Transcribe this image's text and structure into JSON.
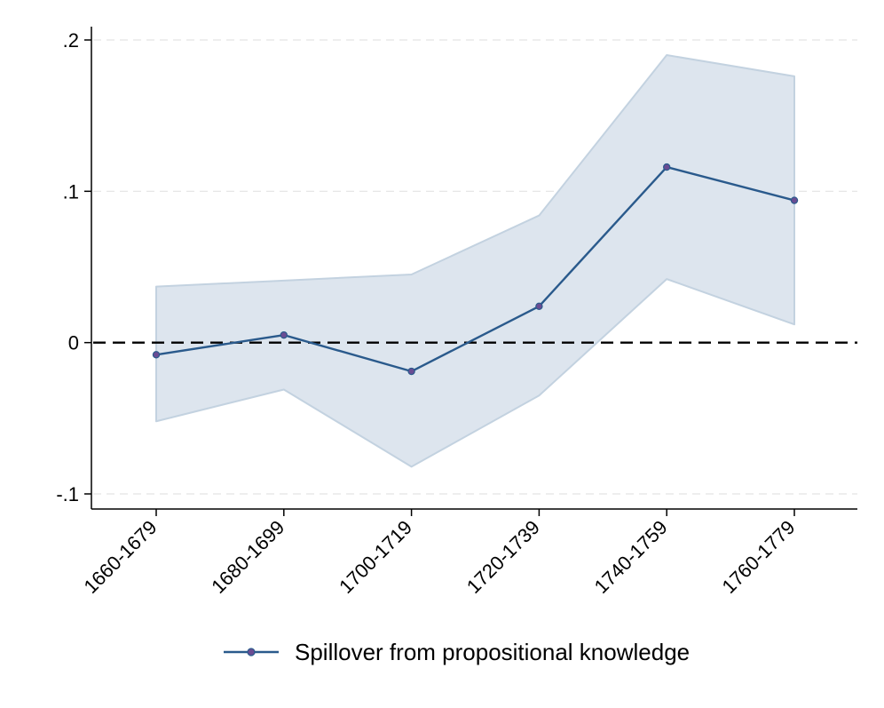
{
  "chart_data": {
    "type": "line",
    "categories": [
      "1660-1679",
      "1680-1699",
      "1700-1719",
      "1720-1739",
      "1740-1759",
      "1760-1779"
    ],
    "series": [
      {
        "name": "Spillover from propositional knowledge",
        "values": [
          -0.008,
          0.005,
          -0.019,
          0.024,
          0.116,
          0.094
        ],
        "ci_lower": [
          -0.052,
          -0.031,
          -0.082,
          -0.035,
          0.042,
          0.012
        ],
        "ci_upper": [
          0.037,
          0.041,
          0.045,
          0.084,
          0.19,
          0.176
        ]
      }
    ],
    "y_ticks": [
      -0.1,
      0,
      0.1,
      0.2
    ],
    "y_tick_labels": [
      "-.1",
      "0",
      ".1",
      ".2"
    ],
    "ylim": [
      -0.11,
      0.2
    ],
    "reference_line": 0,
    "grid": true,
    "legend_position": "bottom",
    "colors": {
      "line": "#2a5a8c",
      "marker": "#6a4c93",
      "band_fill": "#dde5ee",
      "band_edge": "#c3d2e0",
      "grid": "#e3e3e3",
      "reference": "#000000"
    }
  }
}
